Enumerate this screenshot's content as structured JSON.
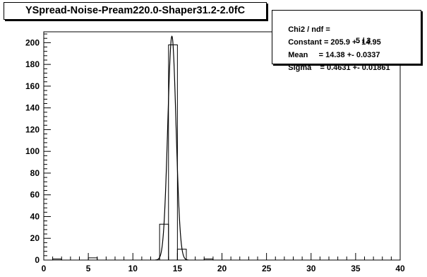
{
  "chart_data": {
    "type": "bar",
    "title": "YSpread-Noise-Pream220.0-Shaper31.2-2.0fC",
    "xlabel": "",
    "ylabel": "",
    "xlim": [
      0,
      40
    ],
    "ylim": [
      0,
      210
    ],
    "x_ticks": [
      0,
      5,
      10,
      15,
      20,
      25,
      30,
      35,
      40
    ],
    "x_tick_labels": [
      "0",
      "5",
      "10",
      "15",
      "20",
      "25",
      "30",
      "35",
      "40"
    ],
    "y_ticks": [
      0,
      20,
      40,
      60,
      80,
      100,
      120,
      140,
      160,
      180,
      200
    ],
    "y_tick_labels": [
      "0",
      "20",
      "40",
      "60",
      "80",
      "100",
      "120",
      "140",
      "160",
      "180",
      "200"
    ],
    "grid": false,
    "legend": "none",
    "histogram": {
      "bin_width": 0.5,
      "bins": [
        {
          "x_low": 1.0,
          "x_high": 2.0,
          "count": 1
        },
        {
          "x_low": 5.0,
          "x_high": 6.0,
          "count": 2
        },
        {
          "x_low": 13.0,
          "x_high": 14.0,
          "count": 33
        },
        {
          "x_low": 14.0,
          "x_high": 15.0,
          "count": 198
        },
        {
          "x_low": 15.0,
          "x_high": 16.0,
          "count": 10
        },
        {
          "x_low": 18.0,
          "x_high": 19.0,
          "count": 1
        }
      ]
    },
    "fit": {
      "function": "gaus",
      "constant": 205.9,
      "mean": 14.38,
      "sigma": 0.4631
    },
    "stats_box": [
      {
        "key": "Chi2 / ndf = ",
        "value": "5 / 3"
      },
      {
        "key": "Constant = 205.9 +- 14.95",
        "value": ""
      },
      {
        "key": "Mean     = 14.38 +- 0.0337",
        "value": ""
      },
      {
        "key": "Sigma    = 0.4631 +- 0.01861",
        "value": ""
      }
    ],
    "colors": {
      "line": "#000000",
      "background": "#ffffff"
    }
  }
}
